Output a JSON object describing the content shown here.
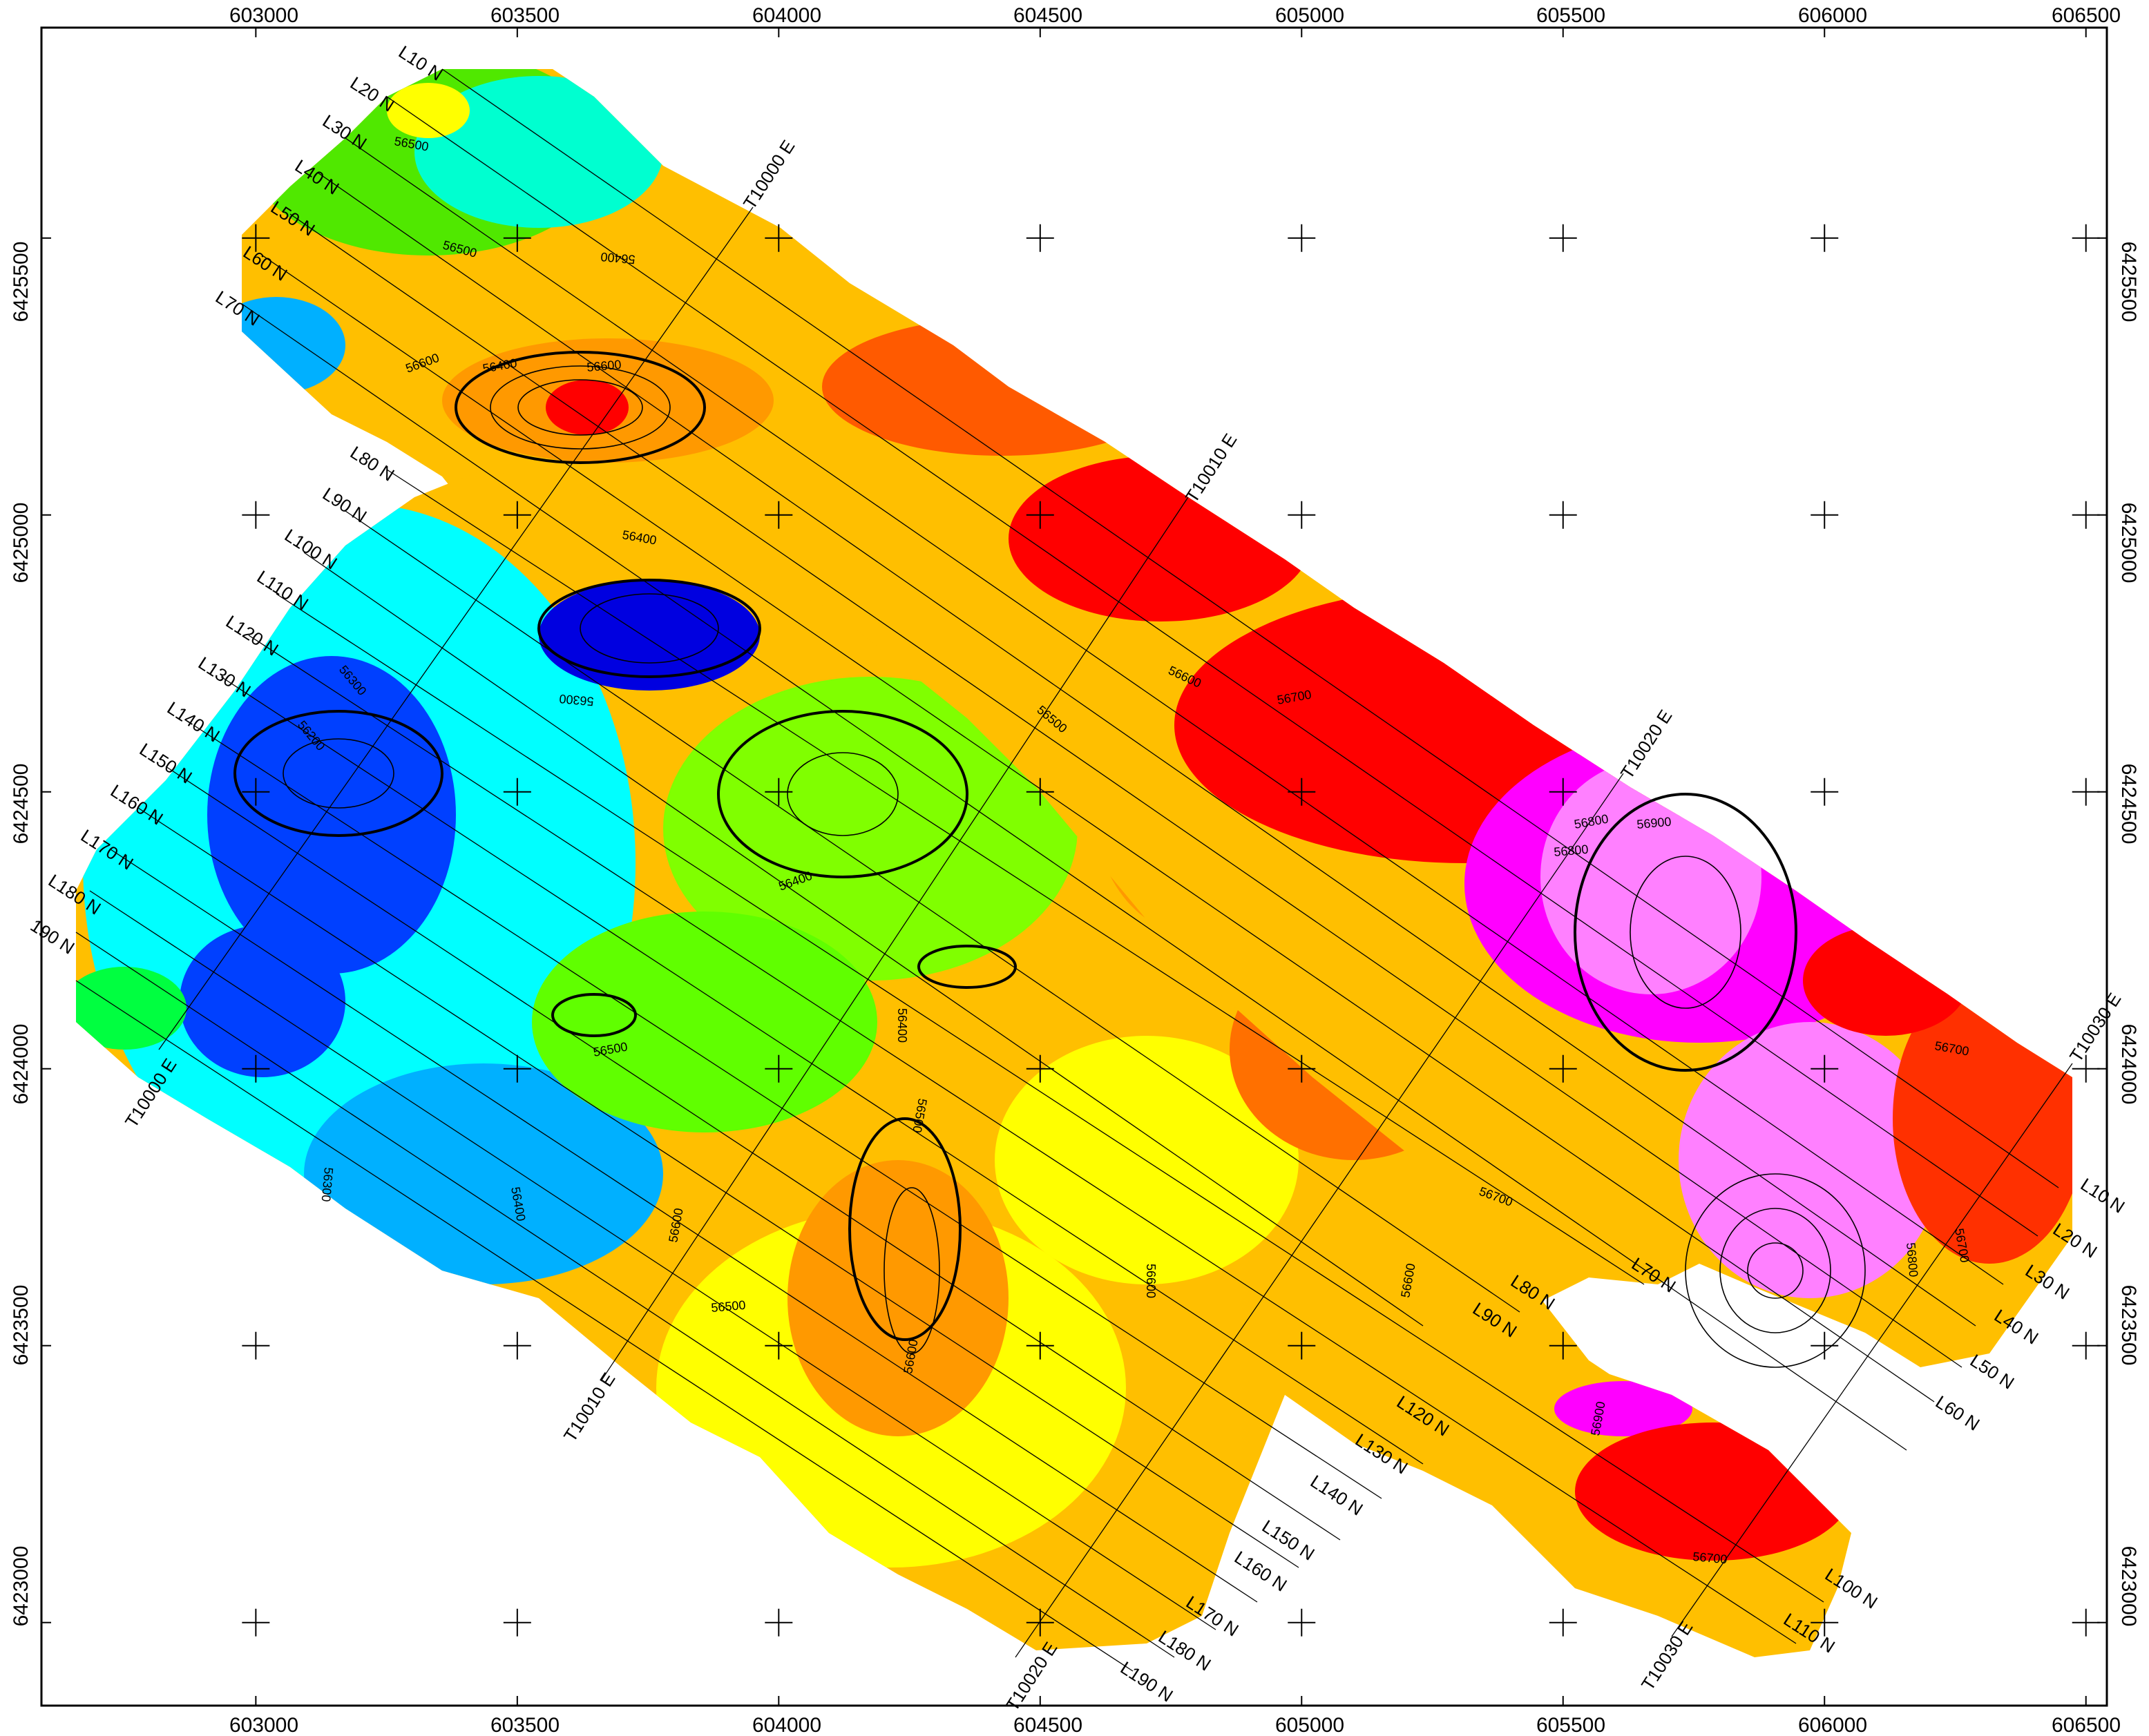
{
  "map": {
    "x_axis_labels": [
      "603000",
      "603500",
      "604000",
      "604500",
      "605000",
      "605500",
      "606000",
      "606500"
    ],
    "y_axis_labels": [
      "6425500",
      "6425000",
      "6424500",
      "6424000",
      "6423500",
      "6423000"
    ],
    "x_range": [
      602590,
      606540
    ],
    "y_range": [
      6422850,
      6425880
    ],
    "colors": {
      "magenta": "#ff00ff",
      "pink": "#ff80ff",
      "red": "#ff0000",
      "orange_red": "#ff5a00",
      "orange": "#ff9900",
      "yellow": "#ffff00",
      "lime": "#7fff00",
      "green": "#00e000",
      "cyan": "#00ffff",
      "light_blue": "#00b0ff",
      "blue": "#0040ff",
      "dark_blue": "#0000e0"
    },
    "flight_lines_left": [
      "L10 N",
      "L20 N",
      "L30 N",
      "L40 N",
      "L50 N",
      "L60 N",
      "L70 N",
      "L80 N",
      "L90 N",
      "L100 N",
      "L110 N",
      "L120 N",
      "L130 N",
      "L140 N",
      "L150 N",
      "L160 N",
      "L170 N",
      "L180 N",
      "190 N"
    ],
    "flight_lines_right": [
      "L10 N",
      "L20 N",
      "L30 N",
      "L40 N",
      "L50 N",
      "L60 N",
      "L70 N",
      "L80 N",
      "L90 N",
      "L100 N",
      "L110 N",
      "L120 N",
      "L130 N",
      "L140 N",
      "L150 N",
      "L160 N",
      "L170 N",
      "L180 N",
      "L190 N"
    ],
    "tie_lines": [
      "T10000 E",
      "T10000 E",
      "T10010 E",
      "T10010 E",
      "T10020 E",
      "T10020 E",
      "T10030 E",
      "T10030 E"
    ],
    "contour_labels": [
      "56500",
      "56500",
      "56400",
      "56600",
      "56600",
      "56400",
      "56400",
      "56300",
      "56300",
      "56200",
      "56600",
      "56500",
      "56700",
      "56800",
      "56400",
      "56400",
      "56500",
      "56300",
      "56400",
      "56600",
      "56500",
      "56600",
      "56600",
      "56600",
      "56500",
      "56700",
      "56800",
      "56800",
      "56700",
      "56700",
      "56900",
      "56700",
      "56900"
    ]
  }
}
